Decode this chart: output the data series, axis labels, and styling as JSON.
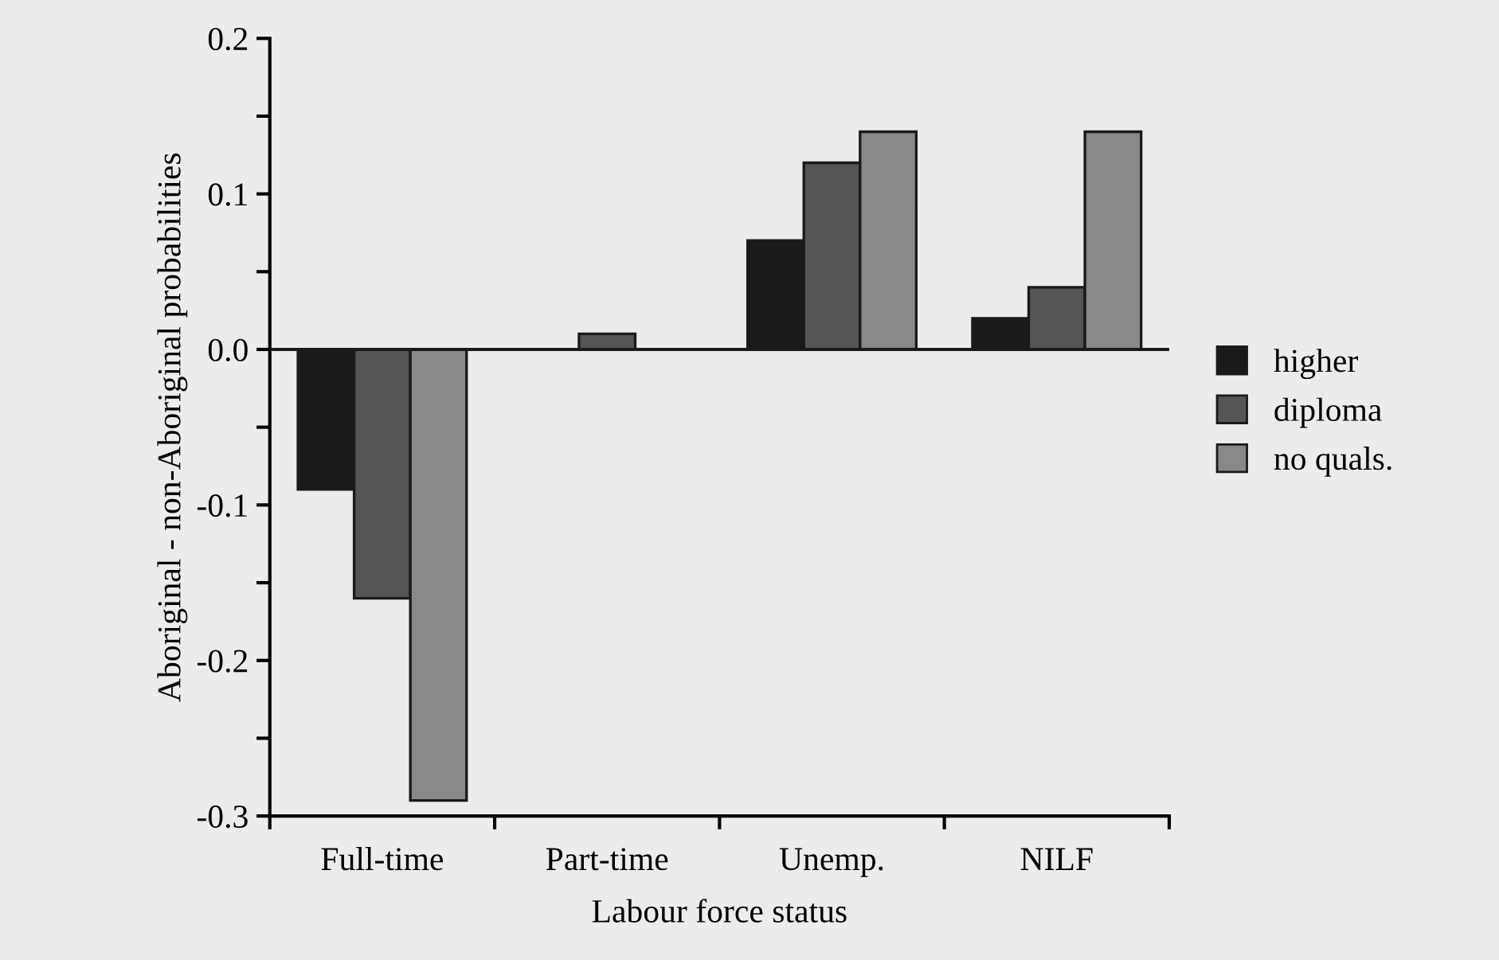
{
  "chart_data": {
    "type": "bar",
    "xlabel": "Labour force status",
    "ylabel": "Aboriginal - non-Aboriginal probabilities",
    "categories": [
      "Full-time",
      "Part-time",
      "Unemp.",
      "NILF"
    ],
    "series": [
      {
        "name": "higher",
        "color": "#1a1a1a",
        "values": [
          -0.09,
          0,
          0.07,
          0.02
        ]
      },
      {
        "name": "diploma",
        "color": "#555555",
        "values": [
          -0.16,
          0.01,
          0.12,
          0.04
        ]
      },
      {
        "name": "no quals.",
        "color": "#888888",
        "values": [
          -0.29,
          0,
          0.14,
          0.14
        ]
      }
    ],
    "ylim": [
      -0.3,
      0.2
    ],
    "yticks": [
      0.2,
      {
        "value": 0.15,
        "label": null
      },
      0.1,
      {
        "value": 0.05,
        "label": null
      },
      {
        "value": 0,
        "label": "0.0"
      },
      {
        "value": -0.05,
        "label": null
      },
      -0.1,
      {
        "value": -0.15,
        "label": null
      },
      -0.2,
      {
        "value": -0.25,
        "label": null
      },
      -0.3
    ],
    "ref_lines": [
      {
        "axis": "y",
        "value": 0,
        "label": null,
        "color": "#1a1a1a"
      }
    ],
    "legend": "right",
    "grid": false
  }
}
